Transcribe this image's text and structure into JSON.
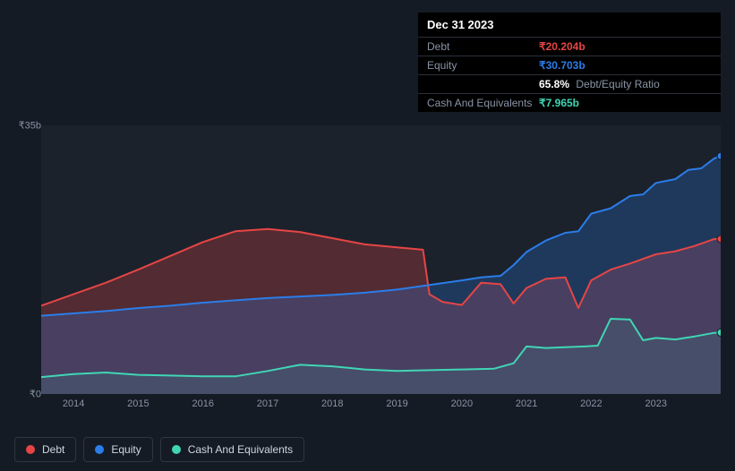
{
  "tooltip": {
    "date": "Dec 31 2023",
    "rows": [
      {
        "label": "Debt",
        "value": "₹20.204b",
        "color": "#e64545"
      },
      {
        "label": "Equity",
        "value": "₹30.703b",
        "color": "#2b7de9"
      },
      {
        "label": "",
        "value": "65.8%",
        "sub": "Debt/Equity Ratio",
        "color": "#ffffff"
      },
      {
        "label": "Cash And Equivalents",
        "value": "₹7.965b",
        "color": "#40d6b5"
      }
    ]
  },
  "chart": {
    "type": "area",
    "background_color": "#1b222c",
    "page_background": "#151b24",
    "ylim": [
      0,
      35
    ],
    "y_ticks": [
      {
        "v": 0,
        "label": "₹0"
      },
      {
        "v": 35,
        "label": "₹35b"
      }
    ],
    "x_years": [
      "2014",
      "2015",
      "2016",
      "2017",
      "2018",
      "2019",
      "2020",
      "2021",
      "2022",
      "2023"
    ],
    "x_domain": [
      2013.5,
      2024.0
    ],
    "series": [
      {
        "name": "Debt",
        "color": "#e64545",
        "fill_opacity": 0.28,
        "stroke_width": 2,
        "points": [
          [
            2013.5,
            11.5
          ],
          [
            2014.0,
            13.0
          ],
          [
            2014.5,
            14.5
          ],
          [
            2015.0,
            16.2
          ],
          [
            2015.5,
            18.0
          ],
          [
            2016.0,
            19.8
          ],
          [
            2016.5,
            21.2
          ],
          [
            2017.0,
            21.5
          ],
          [
            2017.5,
            21.1
          ],
          [
            2018.0,
            20.3
          ],
          [
            2018.5,
            19.5
          ],
          [
            2019.0,
            19.1
          ],
          [
            2019.4,
            18.8
          ],
          [
            2019.5,
            13.0
          ],
          [
            2019.7,
            12.0
          ],
          [
            2020.0,
            11.6
          ],
          [
            2020.3,
            14.5
          ],
          [
            2020.6,
            14.3
          ],
          [
            2020.8,
            11.8
          ],
          [
            2021.0,
            13.8
          ],
          [
            2021.3,
            15.0
          ],
          [
            2021.6,
            15.2
          ],
          [
            2021.8,
            11.2
          ],
          [
            2022.0,
            14.8
          ],
          [
            2022.3,
            16.2
          ],
          [
            2022.6,
            17.0
          ],
          [
            2023.0,
            18.2
          ],
          [
            2023.3,
            18.6
          ],
          [
            2023.6,
            19.3
          ],
          [
            2023.9,
            20.2
          ],
          [
            2024.0,
            20.2
          ]
        ]
      },
      {
        "name": "Equity",
        "color": "#2b7de9",
        "fill_opacity": 0.26,
        "stroke_width": 2,
        "points": [
          [
            2013.5,
            10.2
          ],
          [
            2014.0,
            10.5
          ],
          [
            2014.5,
            10.8
          ],
          [
            2015.0,
            11.2
          ],
          [
            2015.5,
            11.5
          ],
          [
            2016.0,
            11.9
          ],
          [
            2016.5,
            12.2
          ],
          [
            2017.0,
            12.5
          ],
          [
            2017.5,
            12.7
          ],
          [
            2018.0,
            12.9
          ],
          [
            2018.5,
            13.2
          ],
          [
            2019.0,
            13.6
          ],
          [
            2019.5,
            14.2
          ],
          [
            2020.0,
            14.8
          ],
          [
            2020.3,
            15.2
          ],
          [
            2020.6,
            15.4
          ],
          [
            2020.8,
            16.8
          ],
          [
            2021.0,
            18.5
          ],
          [
            2021.3,
            20.0
          ],
          [
            2021.6,
            21.0
          ],
          [
            2021.8,
            21.2
          ],
          [
            2022.0,
            23.5
          ],
          [
            2022.3,
            24.2
          ],
          [
            2022.6,
            25.8
          ],
          [
            2022.8,
            26.0
          ],
          [
            2023.0,
            27.5
          ],
          [
            2023.3,
            28.0
          ],
          [
            2023.5,
            29.2
          ],
          [
            2023.7,
            29.4
          ],
          [
            2023.9,
            30.7
          ],
          [
            2024.0,
            31.0
          ]
        ]
      },
      {
        "name": "Cash And Equivalents",
        "color": "#40d6b5",
        "fill_opacity": 0.1,
        "stroke_width": 2,
        "points": [
          [
            2013.5,
            2.2
          ],
          [
            2014.0,
            2.6
          ],
          [
            2014.5,
            2.8
          ],
          [
            2015.0,
            2.5
          ],
          [
            2015.5,
            2.4
          ],
          [
            2016.0,
            2.3
          ],
          [
            2016.5,
            2.3
          ],
          [
            2017.0,
            3.0
          ],
          [
            2017.5,
            3.8
          ],
          [
            2018.0,
            3.6
          ],
          [
            2018.5,
            3.2
          ],
          [
            2019.0,
            3.0
          ],
          [
            2019.5,
            3.1
          ],
          [
            2020.0,
            3.2
          ],
          [
            2020.5,
            3.3
          ],
          [
            2020.8,
            4.0
          ],
          [
            2021.0,
            6.2
          ],
          [
            2021.3,
            6.0
          ],
          [
            2021.6,
            6.1
          ],
          [
            2021.9,
            6.2
          ],
          [
            2022.1,
            6.3
          ],
          [
            2022.3,
            9.8
          ],
          [
            2022.6,
            9.7
          ],
          [
            2022.8,
            7.0
          ],
          [
            2023.0,
            7.3
          ],
          [
            2023.3,
            7.1
          ],
          [
            2023.6,
            7.5
          ],
          [
            2023.9,
            7.97
          ],
          [
            2024.0,
            8.0
          ]
        ]
      }
    ],
    "legend": [
      {
        "label": "Debt",
        "color": "#e64545"
      },
      {
        "label": "Equity",
        "color": "#2b7de9"
      },
      {
        "label": "Cash And Equivalents",
        "color": "#40d6b5"
      }
    ]
  }
}
